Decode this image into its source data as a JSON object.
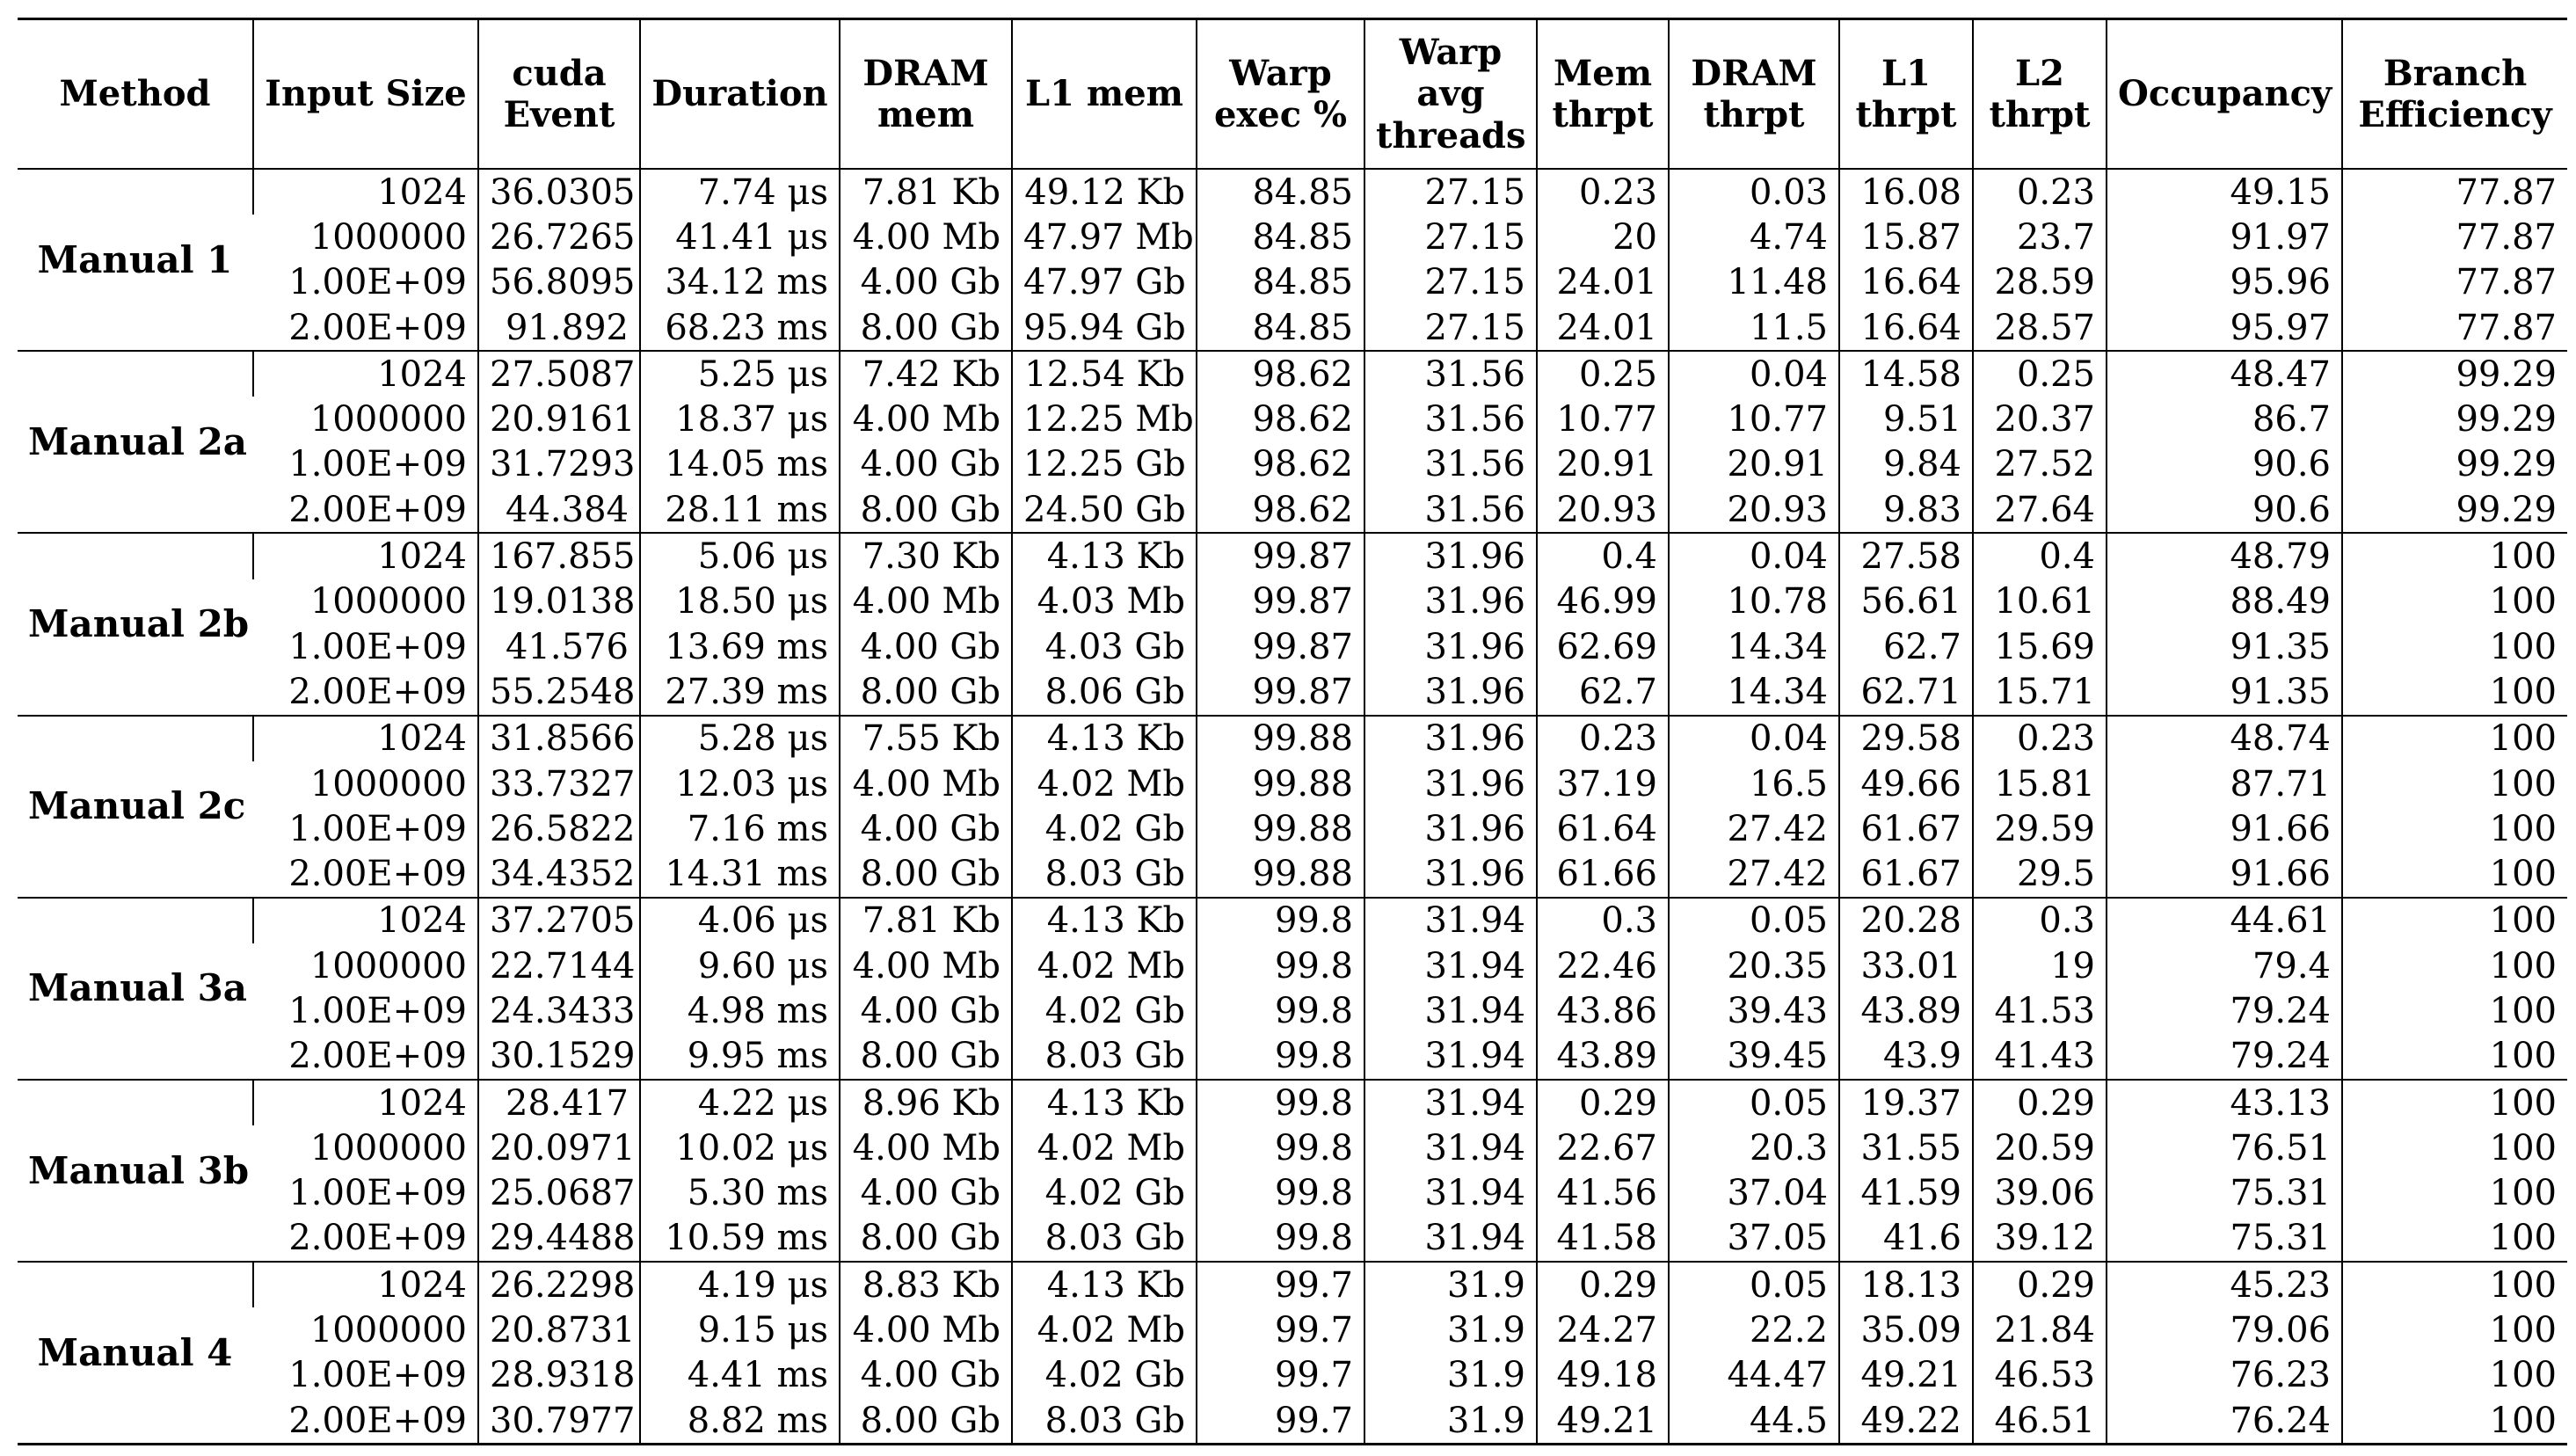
{
  "table": {
    "headers": [
      "Method",
      "Input Size",
      "cuda Event",
      "Duration",
      "DRAM mem",
      "L1 mem",
      "Warp exec %",
      "Warp avg threads",
      "Mem thrpt",
      "DRAM thrpt",
      "L1 thrpt",
      "L2 thrpt",
      "Occupancy",
      "Branch Efficiency"
    ],
    "groups": [
      {
        "method": "Manual 1",
        "rows": [
          [
            "1024",
            "36.0305",
            "7.74 μs",
            "7.81 Kb",
            "49.12 Kb",
            "84.85",
            "27.15",
            "0.23",
            "0.03",
            "16.08",
            "0.23",
            "49.15",
            "77.87"
          ],
          [
            "1000000",
            "26.7265",
            "41.41 μs",
            "4.00 Mb",
            "47.97 Mb",
            "84.85",
            "27.15",
            "20",
            "4.74",
            "15.87",
            "23.7",
            "91.97",
            "77.87"
          ],
          [
            "1.00E+09",
            "56.8095",
            "34.12 ms",
            "4.00 Gb",
            "47.97 Gb",
            "84.85",
            "27.15",
            "24.01",
            "11.48",
            "16.64",
            "28.59",
            "95.96",
            "77.87"
          ],
          [
            "2.00E+09",
            "91.892",
            "68.23 ms",
            "8.00 Gb",
            "95.94 Gb",
            "84.85",
            "27.15",
            "24.01",
            "11.5",
            "16.64",
            "28.57",
            "95.97",
            "77.87"
          ]
        ]
      },
      {
        "method": "Manual 2a",
        "rows": [
          [
            "1024",
            "27.5087",
            "5.25 μs",
            "7.42 Kb",
            "12.54 Kb",
            "98.62",
            "31.56",
            "0.25",
            "0.04",
            "14.58",
            "0.25",
            "48.47",
            "99.29"
          ],
          [
            "1000000",
            "20.9161",
            "18.37 μs",
            "4.00 Mb",
            "12.25 Mb",
            "98.62",
            "31.56",
            "10.77",
            "10.77",
            "9.51",
            "20.37",
            "86.7",
            "99.29"
          ],
          [
            "1.00E+09",
            "31.7293",
            "14.05 ms",
            "4.00 Gb",
            "12.25 Gb",
            "98.62",
            "31.56",
            "20.91",
            "20.91",
            "9.84",
            "27.52",
            "90.6",
            "99.29"
          ],
          [
            "2.00E+09",
            "44.384",
            "28.11 ms",
            "8.00 Gb",
            "24.50 Gb",
            "98.62",
            "31.56",
            "20.93",
            "20.93",
            "9.83",
            "27.64",
            "90.6",
            "99.29"
          ]
        ]
      },
      {
        "method": "Manual 2b",
        "rows": [
          [
            "1024",
            "167.855",
            "5.06 μs",
            "7.30 Kb",
            "4.13 Kb",
            "99.87",
            "31.96",
            "0.4",
            "0.04",
            "27.58",
            "0.4",
            "48.79",
            "100"
          ],
          [
            "1000000",
            "19.0138",
            "18.50 μs",
            "4.00 Mb",
            "4.03 Mb",
            "99.87",
            "31.96",
            "46.99",
            "10.78",
            "56.61",
            "10.61",
            "88.49",
            "100"
          ],
          [
            "1.00E+09",
            "41.576",
            "13.69 ms",
            "4.00 Gb",
            "4.03 Gb",
            "99.87",
            "31.96",
            "62.69",
            "14.34",
            "62.7",
            "15.69",
            "91.35",
            "100"
          ],
          [
            "2.00E+09",
            "55.2548",
            "27.39 ms",
            "8.00 Gb",
            "8.06 Gb",
            "99.87",
            "31.96",
            "62.7",
            "14.34",
            "62.71",
            "15.71",
            "91.35",
            "100"
          ]
        ]
      },
      {
        "method": "Manual 2c",
        "rows": [
          [
            "1024",
            "31.8566",
            "5.28 μs",
            "7.55 Kb",
            "4.13 Kb",
            "99.88",
            "31.96",
            "0.23",
            "0.04",
            "29.58",
            "0.23",
            "48.74",
            "100"
          ],
          [
            "1000000",
            "33.7327",
            "12.03 μs",
            "4.00 Mb",
            "4.02 Mb",
            "99.88",
            "31.96",
            "37.19",
            "16.5",
            "49.66",
            "15.81",
            "87.71",
            "100"
          ],
          [
            "1.00E+09",
            "26.5822",
            "7.16 ms",
            "4.00 Gb",
            "4.02 Gb",
            "99.88",
            "31.96",
            "61.64",
            "27.42",
            "61.67",
            "29.59",
            "91.66",
            "100"
          ],
          [
            "2.00E+09",
            "34.4352",
            "14.31 ms",
            "8.00 Gb",
            "8.03 Gb",
            "99.88",
            "31.96",
            "61.66",
            "27.42",
            "61.67",
            "29.5",
            "91.66",
            "100"
          ]
        ]
      },
      {
        "method": "Manual 3a",
        "rows": [
          [
            "1024",
            "37.2705",
            "4.06 μs",
            "7.81 Kb",
            "4.13 Kb",
            "99.8",
            "31.94",
            "0.3",
            "0.05",
            "20.28",
            "0.3",
            "44.61",
            "100"
          ],
          [
            "1000000",
            "22.7144",
            "9.60 μs",
            "4.00 Mb",
            "4.02 Mb",
            "99.8",
            "31.94",
            "22.46",
            "20.35",
            "33.01",
            "19",
            "79.4",
            "100"
          ],
          [
            "1.00E+09",
            "24.3433",
            "4.98 ms",
            "4.00 Gb",
            "4.02 Gb",
            "99.8",
            "31.94",
            "43.86",
            "39.43",
            "43.89",
            "41.53",
            "79.24",
            "100"
          ],
          [
            "2.00E+09",
            "30.1529",
            "9.95 ms",
            "8.00 Gb",
            "8.03 Gb",
            "99.8",
            "31.94",
            "43.89",
            "39.45",
            "43.9",
            "41.43",
            "79.24",
            "100"
          ]
        ]
      },
      {
        "method": "Manual 3b",
        "rows": [
          [
            "1024",
            "28.417",
            "4.22 μs",
            "8.96 Kb",
            "4.13 Kb",
            "99.8",
            "31.94",
            "0.29",
            "0.05",
            "19.37",
            "0.29",
            "43.13",
            "100"
          ],
          [
            "1000000",
            "20.0971",
            "10.02 μs",
            "4.00 Mb",
            "4.02 Mb",
            "99.8",
            "31.94",
            "22.67",
            "20.3",
            "31.55",
            "20.59",
            "76.51",
            "100"
          ],
          [
            "1.00E+09",
            "25.0687",
            "5.30 ms",
            "4.00 Gb",
            "4.02 Gb",
            "99.8",
            "31.94",
            "41.56",
            "37.04",
            "41.59",
            "39.06",
            "75.31",
            "100"
          ],
          [
            "2.00E+09",
            "29.4488",
            "10.59 ms",
            "8.00 Gb",
            "8.03 Gb",
            "99.8",
            "31.94",
            "41.58",
            "37.05",
            "41.6",
            "39.12",
            "75.31",
            "100"
          ]
        ]
      },
      {
        "method": "Manual 4",
        "rows": [
          [
            "1024",
            "26.2298",
            "4.19 μs",
            "8.83 Kb",
            "4.13 Kb",
            "99.7",
            "31.9",
            "0.29",
            "0.05",
            "18.13",
            "0.29",
            "45.23",
            "100"
          ],
          [
            "1000000",
            "20.8731",
            "9.15 μs",
            "4.00 Mb",
            "4.02 Mb",
            "99.7",
            "31.9",
            "24.27",
            "22.2",
            "35.09",
            "21.84",
            "79.06",
            "100"
          ],
          [
            "1.00E+09",
            "28.9318",
            "4.41 ms",
            "4.00 Gb",
            "4.02 Gb",
            "99.7",
            "31.9",
            "49.18",
            "44.47",
            "49.21",
            "46.53",
            "76.23",
            "100"
          ],
          [
            "2.00E+09",
            "30.7977",
            "8.82 ms",
            "8.00 Gb",
            "8.03 Gb",
            "99.7",
            "31.9",
            "49.21",
            "44.5",
            "49.22",
            "46.51",
            "76.24",
            "100"
          ]
        ]
      }
    ]
  }
}
